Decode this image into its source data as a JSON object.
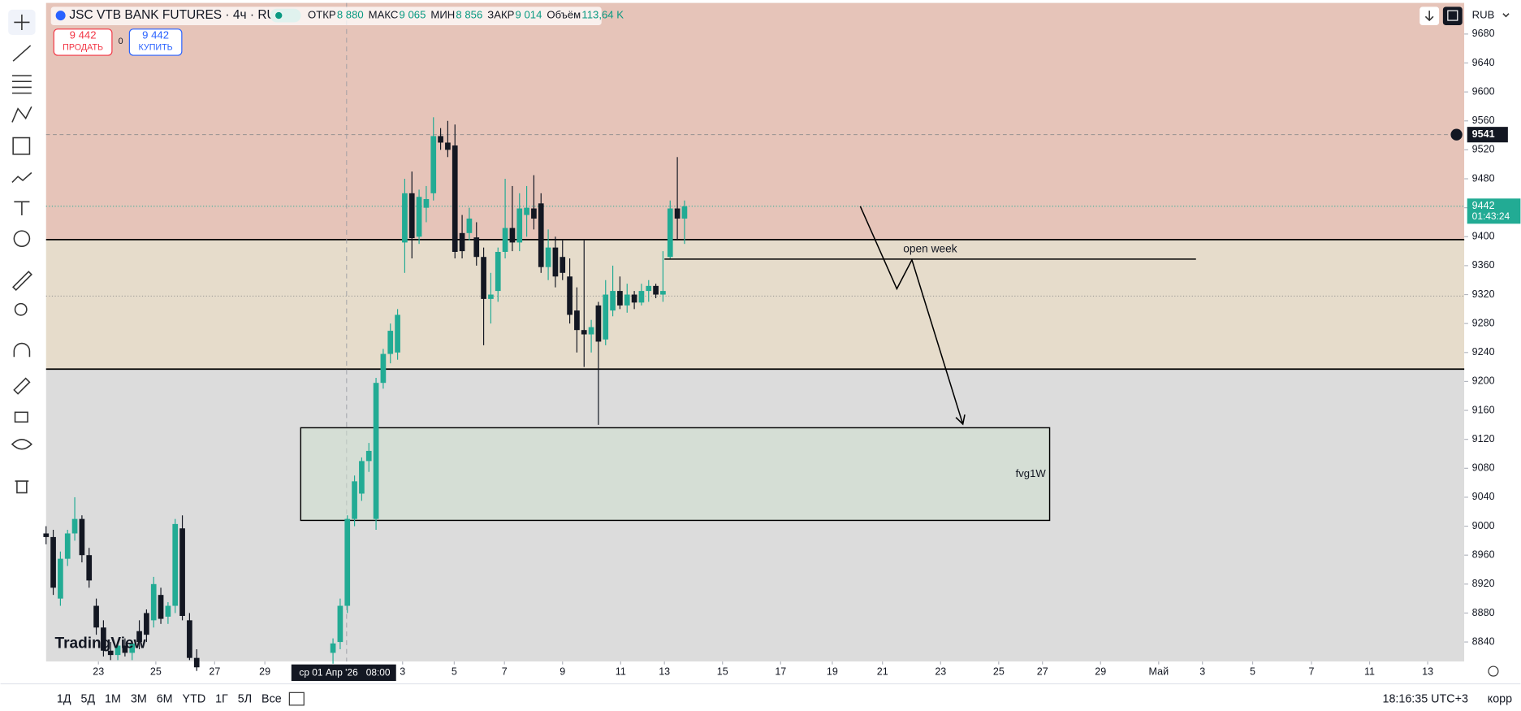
{
  "header": {
    "symbol": "JSC VTB BANK FUTURES · 4ч · RUS",
    "ohlc": [
      {
        "label": "ОТКР",
        "value": "8 880"
      },
      {
        "label": "МАКС",
        "value": "9 065"
      },
      {
        "label": "МИН",
        "value": "8 856"
      },
      {
        "label": "ЗАКР",
        "value": "9 014"
      },
      {
        "label": "Объём",
        "value": "113,64 K"
      }
    ]
  },
  "trade": {
    "sell_price": "9 442",
    "sell": "ПРОДАТЬ",
    "spread": "0",
    "buy_price": "9 442",
    "buy": "КУПИТЬ"
  },
  "currency": "RUB",
  "logo": "TradingView",
  "timeframes": [
    "1Д",
    "5Д",
    "1М",
    "3М",
    "6М",
    "YTD",
    "1Г",
    "5Л",
    "Все"
  ],
  "clock": "18:16:35 UTC+3",
  "adjust": "корр",
  "chart_data": {
    "type": "candlestick",
    "xlim": [
      0,
      197.7
    ],
    "ylim": [
      8813,
      9723
    ],
    "yticks": [
      9680,
      9640,
      9600,
      9560,
      9520,
      9480,
      9440,
      9400,
      9360,
      9320,
      9280,
      9240,
      9200,
      9160,
      9120,
      9080,
      9040,
      9000,
      8960,
      8920,
      8880,
      8840
    ],
    "xticks": [
      {
        "value": 7.3,
        "label": "23"
      },
      {
        "value": 15.3,
        "label": "25"
      },
      {
        "value": 23.5,
        "label": "27"
      },
      {
        "value": 30.5,
        "label": "29"
      },
      {
        "value": 49.7,
        "label": "3"
      },
      {
        "value": 56.9,
        "label": "5"
      },
      {
        "value": 63.9,
        "label": "7"
      },
      {
        "value": 72.0,
        "label": "9"
      },
      {
        "value": 80.1,
        "label": "11"
      },
      {
        "value": 86.2,
        "label": "13"
      },
      {
        "value": 94.3,
        "label": "15"
      },
      {
        "value": 102.4,
        "label": "17"
      },
      {
        "value": 109.6,
        "label": "19"
      },
      {
        "value": 116.6,
        "label": "21"
      },
      {
        "value": 124.7,
        "label": "23"
      },
      {
        "value": 132.8,
        "label": "25"
      },
      {
        "value": 138.9,
        "label": "27"
      },
      {
        "value": 147.0,
        "label": "29"
      },
      {
        "value": 155.1,
        "label": "Май"
      },
      {
        "value": 161.2,
        "label": "3"
      },
      {
        "value": 168.2,
        "label": "5"
      },
      {
        "value": 176.4,
        "label": "7"
      },
      {
        "value": 184.5,
        "label": "11"
      },
      {
        "value": 192.6,
        "label": "13"
      }
    ],
    "up_color": "#22ab94",
    "down_color": "#131722",
    "candles": {
      "x": [
        0,
        1,
        2,
        3,
        4,
        5,
        6,
        7,
        8,
        9,
        10,
        11,
        12,
        13,
        14,
        15,
        16,
        17,
        18,
        19,
        20,
        21,
        40,
        41,
        42,
        43,
        44,
        45,
        46,
        47,
        48,
        49,
        50,
        51,
        52,
        53,
        54,
        55,
        56,
        57,
        58,
        59,
        60,
        61,
        62,
        63,
        64,
        65,
        66,
        67,
        68,
        69,
        70,
        71,
        72,
        73,
        74,
        75,
        76,
        77,
        78,
        79,
        80,
        81,
        82,
        83,
        84,
        85,
        86,
        87,
        88,
        89
      ],
      "open": [
        8990,
        8985,
        8900,
        8955,
        8990,
        9010,
        8960,
        8890,
        8860,
        8828,
        8822,
        8835,
        8825,
        8855,
        8880,
        8870,
        8905,
        8875,
        8890,
        8997,
        8870,
        8818,
        8825,
        8840,
        8890,
        9010,
        9045,
        9090,
        9010,
        9198,
        9238,
        9240,
        9392,
        9460,
        9400,
        9440,
        9460,
        9539,
        9530,
        9526,
        9405,
        9405,
        9399,
        9372,
        9314,
        9325,
        9379,
        9412,
        9392,
        9430,
        9439,
        9446,
        9358,
        9385,
        9372,
        9345,
        9298,
        9271,
        9265,
        9305,
        9258,
        9298,
        9325,
        9305,
        9320,
        9309,
        9325,
        9332,
        9320,
        9372,
        9439,
        9425
      ],
      "high": [
        9000,
        8995,
        8965,
        8995,
        9040,
        9015,
        8970,
        8900,
        8870,
        8840,
        8840,
        8845,
        8842,
        8870,
        8885,
        8930,
        8915,
        8895,
        9010,
        9015,
        8880,
        8830,
        8845,
        8900,
        9015,
        9070,
        9095,
        9115,
        9205,
        9245,
        9280,
        9300,
        9480,
        9490,
        9465,
        9470,
        9565,
        9550,
        9560,
        9555,
        9430,
        9440,
        9420,
        9385,
        9350,
        9385,
        9480,
        9470,
        9460,
        9470,
        9485,
        9460,
        9410,
        9400,
        9395,
        9370,
        9330,
        9395,
        9285,
        9310,
        9340,
        9360,
        9345,
        9335,
        9325,
        9335,
        9340,
        9335,
        9380,
        9450,
        9510,
        9450
      ],
      "low": [
        8975,
        8905,
        8890,
        8945,
        8980,
        8950,
        8915,
        8850,
        8820,
        8815,
        8815,
        8820,
        8815,
        8830,
        8840,
        8860,
        8865,
        8865,
        8880,
        8870,
        8815,
        8800,
        8810,
        8830,
        8880,
        9000,
        9035,
        9075,
        8995,
        9190,
        9225,
        9230,
        9350,
        9370,
        9390,
        9420,
        9450,
        9520,
        9510,
        9370,
        9370,
        9395,
        9360,
        9250,
        9280,
        9310,
        9370,
        9380,
        9380,
        9400,
        9410,
        9350,
        9340,
        9330,
        9340,
        9280,
        9240,
        9220,
        9240,
        9140,
        9250,
        9290,
        9300,
        9295,
        9300,
        9305,
        9310,
        9315,
        9310,
        9370,
        9395,
        9390
      ],
      "close": [
        8985,
        8915,
        8955,
        8990,
        9010,
        8960,
        8925,
        8860,
        8828,
        8822,
        8835,
        8825,
        8838,
        8840,
        8850,
        8920,
        8872,
        8890,
        9003,
        8876,
        8818,
        8805,
        8838,
        8890,
        9010,
        9062,
        9090,
        9104,
        9198,
        9238,
        9270,
        9292,
        9460,
        9398,
        9455,
        9452,
        9539,
        9530,
        9520,
        9379,
        9380,
        9425,
        9372,
        9314,
        9320,
        9379,
        9412,
        9392,
        9439,
        9440,
        9425,
        9358,
        9385,
        9345,
        9350,
        9292,
        9271,
        9265,
        9275,
        9255,
        9320,
        9325,
        9305,
        9320,
        9309,
        9325,
        9332,
        9320,
        9325,
        9439,
        9425,
        9442
      ]
    },
    "levels": [
      9396,
      9217
    ],
    "upper_zone_color": "#e6c4b9",
    "middle_zone_color": "#e6dccb",
    "lower_zone_color": "#dcdcdc",
    "mid_line": 9318,
    "alert_price": 9541,
    "last_price": 9442,
    "countdown": "01:43:24",
    "crosshair": {
      "x": 41.9,
      "label": "ср 01 Апр '26",
      "time": "08:00"
    },
    "open_week": {
      "label": "open week",
      "x": [
        86.2,
        160.3
      ],
      "y": 9369
    },
    "fvg": {
      "label": "fvg1W",
      "x": [
        35.5,
        139.9
      ],
      "y": [
        9136,
        9008
      ]
    },
    "arrow": {
      "x": [
        113.5,
        118.6,
        120.7,
        127.8
      ],
      "y": [
        9442,
        9328,
        9368,
        9141
      ]
    }
  }
}
